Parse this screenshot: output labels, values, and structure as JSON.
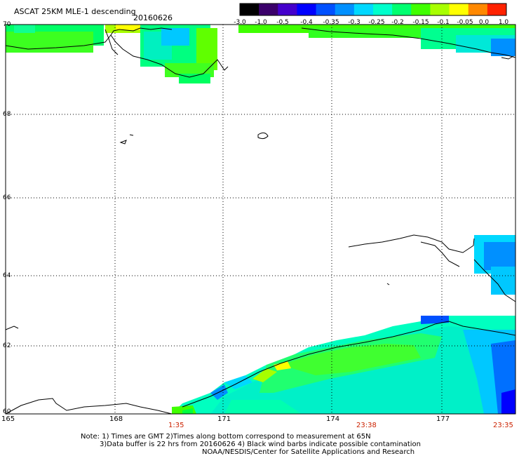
{
  "header": {
    "title": "ASCAT 25KM MLE-1 descending",
    "date": "20160626"
  },
  "colorbar": {
    "ticks": [
      "-3.0",
      "-1.0",
      "-0.5",
      "-0.4",
      "-0.35",
      "-0.3",
      "-0.25",
      "-0.2",
      "-0.15",
      "-0.1",
      "-0.05",
      "0.0",
      "1.0"
    ],
    "colors": [
      "#000000",
      "#3a006a",
      "#4400cc",
      "#0000ff",
      "#0050ff",
      "#0090ff",
      "#00d8ff",
      "#00ffcc",
      "#00ff70",
      "#40ff00",
      "#a8ff00",
      "#ffff00",
      "#ff8800",
      "#ff2200"
    ]
  },
  "map": {
    "lat_labels": [
      "70",
      "68",
      "66",
      "64",
      "62",
      "60"
    ],
    "lon_labels": [
      "165",
      "168",
      "171",
      "174",
      "177"
    ],
    "time_labels": [
      "1:35",
      "23:38",
      "23:35"
    ]
  },
  "footer": {
    "line1": "Note: 1) Times are GMT 2)Times along bottom correspond to measurement at 65N",
    "line2": "3)Data buffer is 22 hrs from 20160626 4) Black wind barbs indicate possible contamination",
    "line3": "NOAA/NESDIS/Center for Satellite Applications and Research"
  }
}
